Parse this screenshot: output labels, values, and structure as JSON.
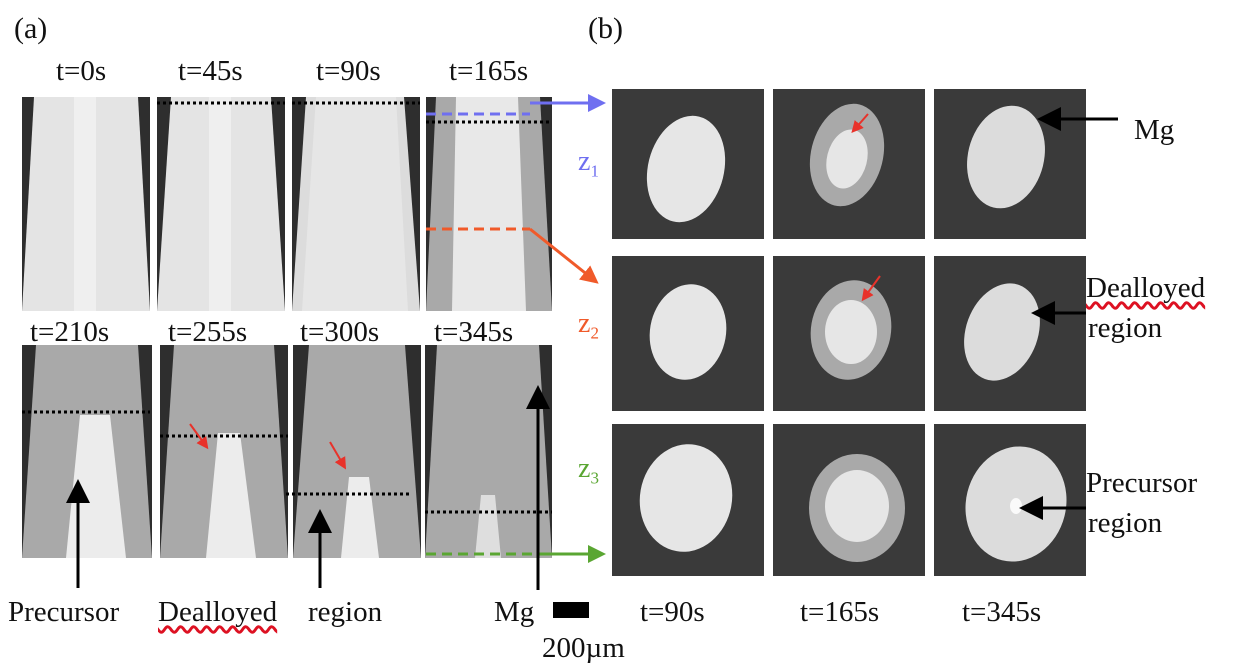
{
  "panel_a": {
    "label": "(a)",
    "row1_times": [
      "t=0s",
      "t=45s",
      "t=90s",
      "t=165s"
    ],
    "row2_times": [
      "t=210s",
      "t=255s",
      "t=300s",
      "t=345s"
    ],
    "bottom_labels": {
      "precursor": "Precursor",
      "dealloyed": "Dealloyed",
      "region": "region",
      "mg": "Mg"
    },
    "scale_label": "200µm"
  },
  "panel_b": {
    "label": "(b)",
    "z_labels": [
      {
        "text": "z",
        "sub": "1",
        "color": "#6f6ff0"
      },
      {
        "text": "z",
        "sub": "2",
        "color": "#f05a2a"
      },
      {
        "text": "z",
        "sub": "3",
        "color": "#5aa632"
      }
    ],
    "col_times": [
      "t=90s",
      "t=165s",
      "t=345s"
    ],
    "annotations": {
      "mg": "Mg",
      "dealloyed_1": "Dealloyed",
      "dealloyed_2": "region",
      "precursor_1": "Precursor",
      "precursor_2": "region"
    }
  },
  "colors": {
    "z1": "#6f6ff0",
    "z2": "#f05a2a",
    "z3": "#5aa632",
    "marker": "#000000",
    "arrow_red": "#e8322a"
  }
}
